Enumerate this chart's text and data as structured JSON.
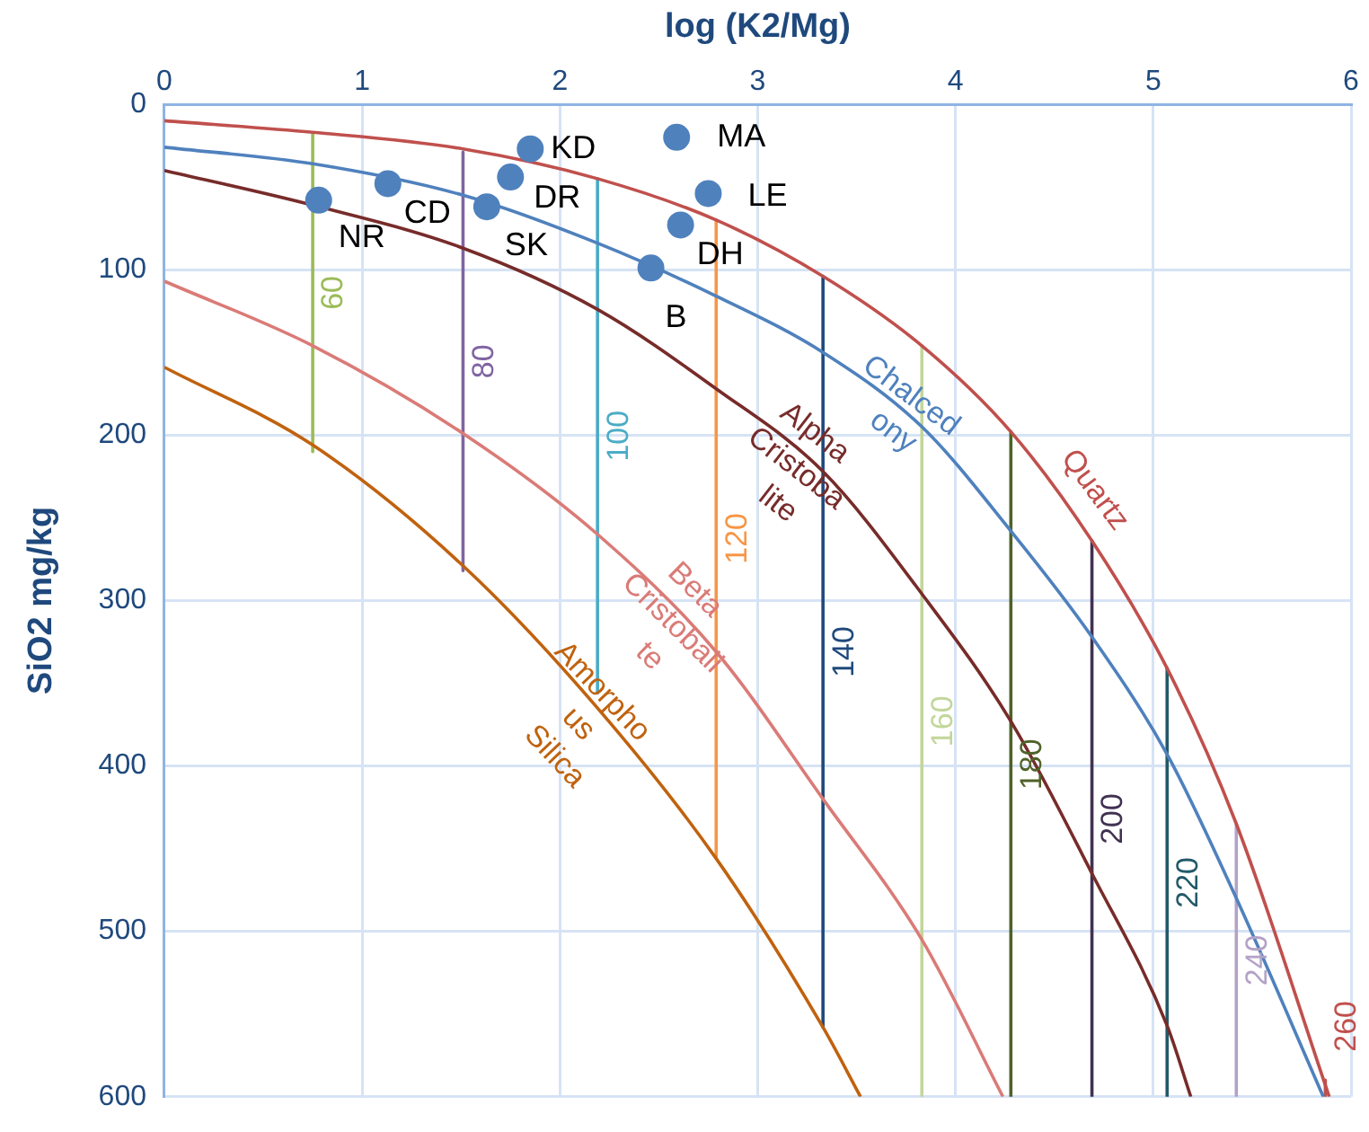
{
  "chart_data": {
    "type": "line",
    "xlabel": "log (K2/Mg)",
    "ylabel": "SiO2 mg/kg",
    "xlim": [
      0,
      6
    ],
    "xticks": [
      0,
      1,
      2,
      3,
      4,
      5,
      6
    ],
    "ylim": [
      600,
      0
    ],
    "yticks": [
      0,
      100,
      200,
      300,
      400,
      500,
      600
    ],
    "grid": true,
    "legend": false,
    "series": [
      {
        "name": "Quartz",
        "color": "#c0504d",
        "x": [
          0,
          0.75,
          1.51,
          2.19,
          2.79,
          3.33,
          3.83,
          4.28,
          4.69,
          5.07,
          5.42,
          5.89
        ],
        "values": [
          10,
          17,
          27,
          45,
          70,
          104,
          146,
          198,
          264,
          341,
          435,
          600
        ]
      },
      {
        "name": "Chalcedony",
        "color": "#4f81bd",
        "x": [
          0,
          0.75,
          1.51,
          2.19,
          2.79,
          3.33,
          3.83,
          4.28,
          4.69,
          5.07,
          5.42,
          5.86
        ],
        "values": [
          26,
          36,
          55,
          84,
          116,
          150,
          195,
          258,
          322,
          393,
          480,
          600
        ]
      },
      {
        "name": "Alpha Cristobalite",
        "color": "#772c2a",
        "x": [
          0,
          0.75,
          1.51,
          2.19,
          2.79,
          3.33,
          3.83,
          4.28,
          4.69,
          5.07,
          5.19
        ],
        "values": [
          40,
          61,
          87,
          124,
          172,
          222,
          296,
          373,
          465,
          557,
          600
        ]
      },
      {
        "name": "Beta Cristobalite",
        "color": "#da7b77",
        "x": [
          0,
          0.75,
          1.51,
          2.19,
          2.79,
          3.33,
          3.83,
          4.24
        ],
        "values": [
          107,
          146,
          199,
          260,
          331,
          420,
          505,
          600
        ]
      },
      {
        "name": "Amorphous Silica",
        "color": "#c0620f",
        "x": [
          0,
          0.75,
          1.51,
          2.19,
          2.79,
          3.33,
          3.52
        ],
        "values": [
          159,
          206,
          279,
          365,
          456,
          558,
          600
        ]
      },
      {
        "name": "60",
        "color": "#9bbb59",
        "x": [
          0.75,
          0.75
        ],
        "values": [
          18,
          210
        ]
      },
      {
        "name": "80",
        "color": "#8064a2",
        "x": [
          1.51,
          1.51
        ],
        "values": [
          29,
          282
        ]
      },
      {
        "name": "100",
        "color": "#4bacc6",
        "x": [
          2.19,
          2.19
        ],
        "values": [
          45,
          356
        ]
      },
      {
        "name": "120",
        "color": "#f79646",
        "x": [
          2.79,
          2.79
        ],
        "values": [
          70,
          455
        ]
      },
      {
        "name": "140",
        "color": "#1f497d",
        "x": [
          3.33,
          3.33
        ],
        "values": [
          104,
          558
        ]
      },
      {
        "name": "160",
        "color": "#c3d69b",
        "x": [
          3.83,
          3.83
        ],
        "values": [
          146,
          600
        ]
      },
      {
        "name": "180",
        "color": "#4f6228",
        "x": [
          4.28,
          4.28
        ],
        "values": [
          198,
          600
        ]
      },
      {
        "name": "200",
        "color": "#403151",
        "x": [
          4.69,
          4.69
        ],
        "values": [
          264,
          600
        ]
      },
      {
        "name": "220",
        "color": "#215968",
        "x": [
          5.07,
          5.07
        ],
        "values": [
          341,
          600
        ]
      },
      {
        "name": "240",
        "color": "#b3a2c7",
        "x": [
          5.42,
          5.42
        ],
        "values": [
          435,
          600
        ]
      },
      {
        "name": "260",
        "color": "#c0504d",
        "x": [
          5.87,
          5.87
        ],
        "values": [
          590,
          600
        ]
      },
      {
        "name": "NR",
        "type": "scatter",
        "marker": "circle",
        "color": "#4f81bd",
        "x": [
          0.78
        ],
        "values": [
          58
        ]
      },
      {
        "name": "CD",
        "type": "scatter",
        "marker": "circle",
        "color": "#4f81bd",
        "x": [
          1.13
        ],
        "values": [
          48
        ]
      },
      {
        "name": "SK",
        "type": "scatter",
        "marker": "circle",
        "color": "#4f81bd",
        "x": [
          1.63
        ],
        "values": [
          62
        ]
      },
      {
        "name": "DR",
        "type": "scatter",
        "marker": "circle",
        "color": "#4f81bd",
        "x": [
          1.75
        ],
        "values": [
          44
        ]
      },
      {
        "name": "KD",
        "type": "scatter",
        "marker": "circle",
        "color": "#4f81bd",
        "x": [
          1.85
        ],
        "values": [
          27
        ]
      },
      {
        "name": "MA",
        "type": "scatter",
        "marker": "circle",
        "color": "#4f81bd",
        "x": [
          2.59
        ],
        "values": [
          20
        ]
      },
      {
        "name": "LE",
        "type": "scatter",
        "marker": "circle",
        "color": "#4f81bd",
        "x": [
          2.75
        ],
        "values": [
          54
        ]
      },
      {
        "name": "DH",
        "type": "scatter",
        "marker": "circle",
        "color": "#4f81bd",
        "x": [
          2.61
        ],
        "values": [
          73
        ]
      },
      {
        "name": "B",
        "type": "scatter",
        "marker": "circle",
        "color": "#4f81bd",
        "x": [
          2.46
        ],
        "values": [
          99
        ]
      }
    ]
  }
}
